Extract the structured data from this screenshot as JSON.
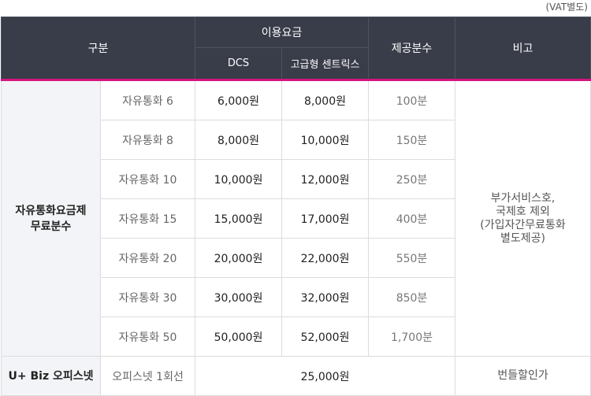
{
  "vat_note": "(VAT별도)",
  "headers": {
    "category": "구분",
    "usage_fee": "이용요금",
    "dcs": "DCS",
    "premium": "고급형 센트릭스",
    "free_minutes": "제공분수",
    "remarks": "비고"
  },
  "group1": {
    "label_line1": "자유통화요금제",
    "label_line2": "무료분수",
    "remark_lines": [
      "부가서비스호,",
      "국제호 제외",
      "(가입자간무료통화",
      "별도제공)"
    ],
    "rows": [
      {
        "plan": "자유통화 6",
        "dcs": "6,000원",
        "premium": "8,000원",
        "minutes": "100분"
      },
      {
        "plan": "자유통화 8",
        "dcs": "8,000원",
        "premium": "10,000원",
        "minutes": "150분"
      },
      {
        "plan": "자유통화 10",
        "dcs": "10,000원",
        "premium": "12,000원",
        "minutes": "250분"
      },
      {
        "plan": "자유통화 15",
        "dcs": "15,000원",
        "premium": "17,000원",
        "minutes": "400분"
      },
      {
        "plan": "자유통화 20",
        "dcs": "20,000원",
        "premium": "22,000원",
        "minutes": "550분"
      },
      {
        "plan": "자유통화 30",
        "dcs": "30,000원",
        "premium": "32,000원",
        "minutes": "850분"
      },
      {
        "plan": "자유통화 50",
        "dcs": "50,000원",
        "premium": "52,000원",
        "minutes": "1,700분"
      }
    ]
  },
  "group2": {
    "label": "U+ Biz 오피스넷",
    "plan": "오피스넷 1회선",
    "price": "25,000원",
    "remark": "번들할인가"
  },
  "colors": {
    "header_bg": "#393c49",
    "accent_line": "#d4157f",
    "category_bg": "#f3f4f7"
  }
}
